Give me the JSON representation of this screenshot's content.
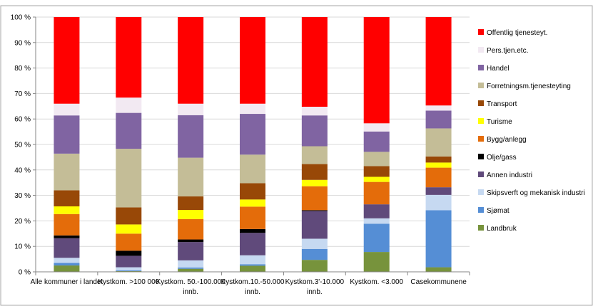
{
  "chart_data": {
    "type": "bar",
    "stacked": true,
    "percent": true,
    "ylim": [
      0,
      100
    ],
    "yticks": [
      "0 %",
      "10 %",
      "20 %",
      "30 %",
      "40 %",
      "50 %",
      "60 %",
      "70 %",
      "80 %",
      "90 %",
      "100 %"
    ],
    "grid": true,
    "legend_position": "right",
    "categories": [
      [
        "Alle kommuner i landet"
      ],
      [
        "Kystkom. >100 000"
      ],
      [
        "Kystkom. 50.-100.000",
        "innb."
      ],
      [
        "Kystkom.10.-50.000",
        "innb."
      ],
      [
        "Kystkom.3'-10.000",
        "innb."
      ],
      [
        "Kystkom. <3.000"
      ],
      [
        "Casekommunene"
      ]
    ],
    "series": [
      {
        "name": "Landbruk",
        "color": "#77933C",
        "values": [
          2.5,
          0.3,
          1.2,
          2.4,
          4.7,
          7.8,
          1.8
        ]
      },
      {
        "name": "Sjømat",
        "color": "#558ED5",
        "values": [
          1.0,
          0.3,
          0.5,
          0.6,
          4.3,
          11.1,
          22.4
        ]
      },
      {
        "name": "Skipsverft og mekanisk industri",
        "color": "#C6D9F1",
        "values": [
          2.0,
          1.2,
          2.8,
          3.5,
          4.0,
          2.1,
          6.0
        ]
      },
      {
        "name": "Annen industri",
        "color": "#604A7B",
        "values": [
          7.7,
          4.5,
          7.2,
          8.8,
          10.9,
          5.5,
          3.0
        ]
      },
      {
        "name": "Olje/gass",
        "color": "#000000",
        "values": [
          1.1,
          2.0,
          1.0,
          1.5,
          0.3,
          0.0,
          0.0
        ]
      },
      {
        "name": "Bygg/anlegg",
        "color": "#E46C0A",
        "values": [
          8.4,
          6.7,
          8.0,
          8.8,
          9.4,
          8.8,
          7.7
        ]
      },
      {
        "name": "Turisme",
        "color": "#FFFF00",
        "values": [
          3.0,
          3.6,
          3.6,
          2.8,
          2.5,
          2.0,
          2.0
        ]
      },
      {
        "name": "Transport",
        "color": "#984807",
        "values": [
          6.3,
          6.7,
          5.3,
          6.4,
          6.2,
          4.2,
          2.4
        ]
      },
      {
        "name": "Forretningsm.tjenesteyting",
        "color": "#C4BD97",
        "values": [
          14.4,
          23.0,
          15.2,
          11.2,
          7.0,
          5.6,
          11.0
        ]
      },
      {
        "name": "Handel",
        "color": "#8064A2",
        "values": [
          15.0,
          14.1,
          16.7,
          16.0,
          12.1,
          8.0,
          7.0
        ]
      },
      {
        "name": "Pers.tjen.etc.",
        "color": "#F2E9F2",
        "values": [
          4.6,
          6.0,
          4.5,
          4.0,
          3.4,
          3.2,
          2.0
        ]
      },
      {
        "name": "Offentlig tjenesteyt.",
        "color": "#FF0000",
        "values": [
          34.0,
          31.6,
          34.0,
          34.0,
          35.2,
          41.7,
          34.7
        ]
      }
    ]
  }
}
